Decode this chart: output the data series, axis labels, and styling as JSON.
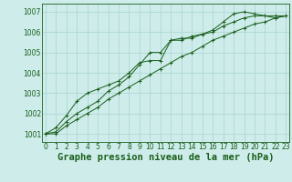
{
  "x": [
    0,
    1,
    2,
    3,
    4,
    5,
    6,
    7,
    8,
    9,
    10,
    11,
    12,
    13,
    14,
    15,
    16,
    17,
    18,
    19,
    20,
    21,
    22,
    23
  ],
  "line1": [
    1001.0,
    1001.1,
    1001.6,
    1002.0,
    1002.3,
    1002.6,
    1003.1,
    1003.4,
    1003.8,
    1004.4,
    1005.0,
    1005.0,
    1005.6,
    1005.6,
    1005.8,
    1005.9,
    1006.0,
    1006.3,
    1006.5,
    1006.7,
    1006.8,
    1006.8,
    1006.7,
    1006.8
  ],
  "line2": [
    1001.0,
    1001.3,
    1001.9,
    1002.6,
    1003.0,
    1003.2,
    1003.4,
    1003.6,
    1004.0,
    1004.5,
    1004.6,
    1004.6,
    1005.6,
    1005.7,
    1005.7,
    1005.9,
    1006.1,
    1006.5,
    1006.9,
    1007.0,
    1006.9,
    1006.8,
    1006.8,
    1006.8
  ],
  "line3": [
    1001.0,
    1001.0,
    1001.4,
    1001.7,
    1002.0,
    1002.3,
    1002.7,
    1003.0,
    1003.3,
    1003.6,
    1003.9,
    1004.2,
    1004.5,
    1004.8,
    1005.0,
    1005.3,
    1005.6,
    1005.8,
    1006.0,
    1006.2,
    1006.4,
    1006.5,
    1006.7,
    1006.8
  ],
  "ylim_min": 1000.6,
  "ylim_max": 1007.4,
  "yticks": [
    1001,
    1002,
    1003,
    1004,
    1005,
    1006,
    1007
  ],
  "xticks": [
    0,
    1,
    2,
    3,
    4,
    5,
    6,
    7,
    8,
    9,
    10,
    11,
    12,
    13,
    14,
    15,
    16,
    17,
    18,
    19,
    20,
    21,
    22,
    23
  ],
  "xlabel": "Graphe pression niveau de la mer (hPa)",
  "line_color": "#1a5e1a",
  "bg_color": "#cdecea",
  "grid_color": "#a8d5d3",
  "marker": "+",
  "marker_size": 3,
  "linewidth": 0.7,
  "tick_fontsize": 5.5,
  "xlabel_fontsize": 7.5
}
